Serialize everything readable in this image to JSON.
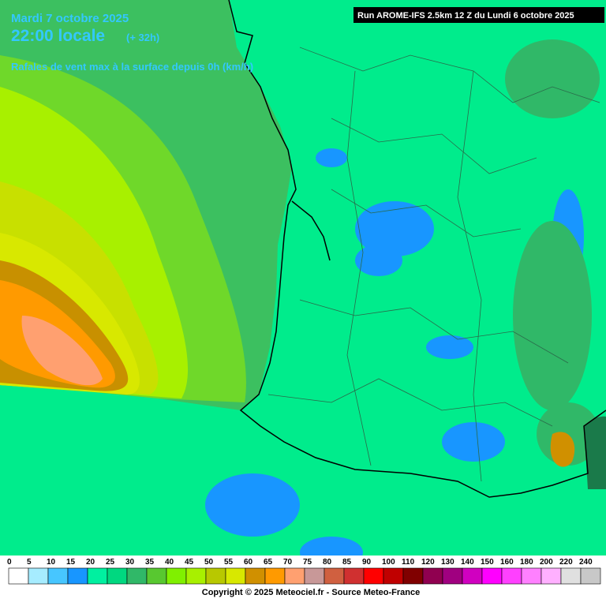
{
  "header": {
    "date": "Mardi 7 octobre 2025",
    "time": "22:00 locale",
    "offset": "(+ 32h)",
    "parameter": "Rafales de vent max à la surface depuis 0h (km/h)",
    "run": "Run AROME-IFS 2.5km 12 Z du Lundi 6 octobre 2025"
  },
  "legend": {
    "items": [
      {
        "value": 0,
        "color": "#ffffff"
      },
      {
        "value": 5,
        "color": "#a6ecff"
      },
      {
        "value": 10,
        "color": "#47c6ff"
      },
      {
        "value": 15,
        "color": "#1896ff"
      },
      {
        "value": 20,
        "color": "#00f0a0"
      },
      {
        "value": 25,
        "color": "#00d880"
      },
      {
        "value": 30,
        "color": "#30b868"
      },
      {
        "value": 35,
        "color": "#58c830"
      },
      {
        "value": 40,
        "color": "#80f000"
      },
      {
        "value": 45,
        "color": "#a8f000"
      },
      {
        "value": 50,
        "color": "#b8c800"
      },
      {
        "value": 55,
        "color": "#d8e800"
      },
      {
        "value": 60,
        "color": "#d09000"
      },
      {
        "value": 65,
        "color": "#ff9a00"
      },
      {
        "value": 70,
        "color": "#ffa070"
      },
      {
        "value": 75,
        "color": "#c89898"
      },
      {
        "value": 80,
        "color": "#d06040"
      },
      {
        "value": 85,
        "color": "#d03030"
      },
      {
        "value": 90,
        "color": "#ff0000"
      },
      {
        "value": 100,
        "color": "#c00000"
      },
      {
        "value": 110,
        "color": "#800000"
      },
      {
        "value": 120,
        "color": "#900050"
      },
      {
        "value": 130,
        "color": "#a00080"
      },
      {
        "value": 140,
        "color": "#d000c0"
      },
      {
        "value": 150,
        "color": "#ff00ff"
      },
      {
        "value": 160,
        "color": "#ff40ff"
      },
      {
        "value": 180,
        "color": "#ff80ff"
      },
      {
        "value": 200,
        "color": "#ffb0ff"
      },
      {
        "value": 220,
        "color": "#e0e0e0"
      },
      {
        "value": 240,
        "color": "#c8c8c8"
      }
    ]
  },
  "footer": {
    "copyright": "Copyright © 2025 Meteociel.fr - Source Meteo-France"
  }
}
